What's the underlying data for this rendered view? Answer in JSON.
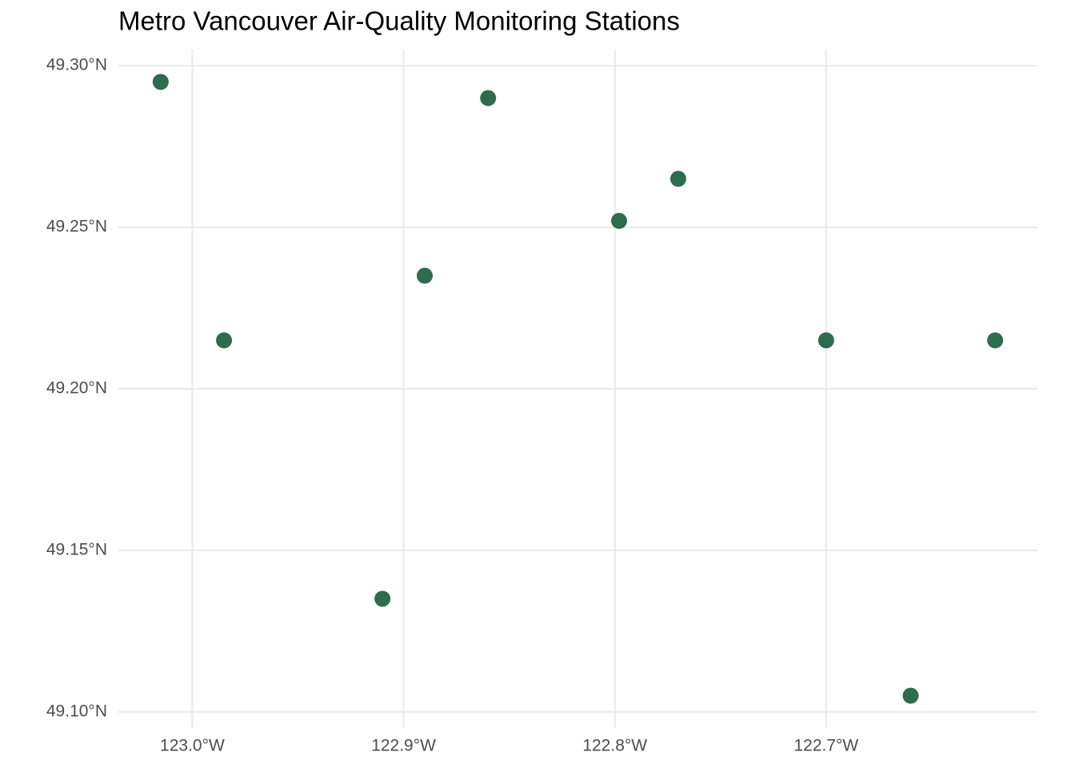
{
  "chart_data": {
    "type": "scatter",
    "title": "Metro Vancouver Air-Quality Monitoring Stations",
    "x": [
      -123.015,
      -122.985,
      -122.91,
      -122.89,
      -122.86,
      -122.798,
      -122.77,
      -122.7,
      -122.66,
      -122.62
    ],
    "values": [
      49.295,
      49.215,
      49.135,
      49.235,
      49.29,
      49.252,
      49.265,
      49.215,
      49.105,
      49.215
    ],
    "color": "#2e6b4f",
    "xlim": [
      -123.035,
      -122.6
    ],
    "ylim": [
      49.095,
      49.305
    ],
    "xticks": [
      {
        "value": -123.0,
        "label": "123.0°W"
      },
      {
        "value": -122.9,
        "label": "122.9°W"
      },
      {
        "value": -122.8,
        "label": "122.8°W"
      },
      {
        "value": -122.7,
        "label": "122.7°W"
      }
    ],
    "yticks": [
      {
        "value": 49.1,
        "label": "49.10°N"
      },
      {
        "value": 49.15,
        "label": "49.15°N"
      },
      {
        "value": 49.2,
        "label": "49.20°N"
      },
      {
        "value": 49.25,
        "label": "49.25°N"
      },
      {
        "value": 49.3,
        "label": "49.30°N"
      }
    ],
    "grid": true
  }
}
